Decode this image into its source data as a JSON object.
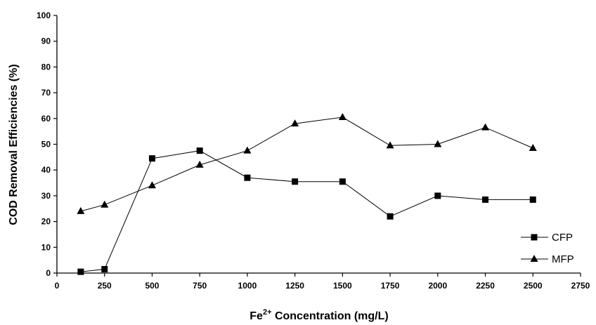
{
  "chart_data": {
    "type": "line",
    "xlabel": "Fe",
    "xlabel_sup": "2+",
    "xlabel_rest": " Concentration (mg/L)",
    "ylabel": "COD Removal Efficiencies (%)",
    "xlim": [
      0,
      2750
    ],
    "ylim": [
      0,
      100
    ],
    "x_ticks": [
      0,
      250,
      500,
      750,
      1000,
      1250,
      1500,
      1750,
      2000,
      2250,
      2500,
      2750
    ],
    "y_ticks": [
      0,
      10,
      20,
      30,
      40,
      50,
      60,
      70,
      80,
      90,
      100
    ],
    "legend_position": "bottom-right",
    "series": [
      {
        "name": "CFP",
        "marker": "square",
        "x": [
          125,
          250,
          500,
          750,
          1000,
          1250,
          1500,
          1750,
          2000,
          2250,
          2500
        ],
        "values": [
          0.5,
          1.5,
          44.5,
          47.5,
          37,
          35.5,
          35.5,
          22,
          30,
          28.5,
          28.5
        ]
      },
      {
        "name": "MFP",
        "marker": "triangle",
        "x": [
          125,
          250,
          500,
          750,
          1000,
          1250,
          1500,
          1750,
          2000,
          2250,
          2500
        ],
        "values": [
          24,
          26.5,
          34,
          42,
          47.5,
          58,
          60.5,
          49.5,
          50,
          56.5,
          48.5
        ]
      }
    ]
  }
}
